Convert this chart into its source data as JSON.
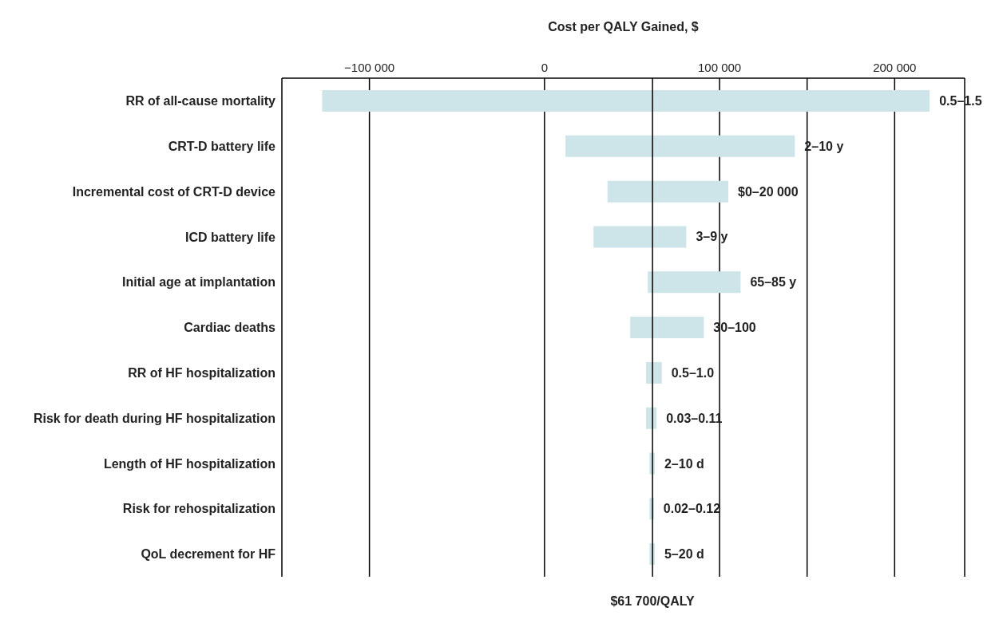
{
  "chart_data": {
    "type": "bar",
    "orientation": "horizontal",
    "xlabel": "Cost per QALY Gained, $",
    "categories": [
      "RR of all-cause mortality",
      "CRT-D battery life",
      "Incremental cost of CRT-D device",
      "ICD battery life",
      "Initial age at implantation",
      "Cardiac deaths",
      "RR of HF hospitalization",
      "Risk for death during HF hospitalization",
      "Length of HF hospitalization",
      "Risk for rehospitalization",
      "QoL decrement for HF"
    ],
    "base": [
      -127000,
      12000,
      36000,
      28000,
      59000,
      49000,
      58000,
      58000,
      60000,
      60000,
      60000
    ],
    "values": [
      347000,
      131000,
      69000,
      53000,
      53000,
      42000,
      9000,
      6000,
      3000,
      2500,
      3000
    ],
    "value_labels": [
      "0.5–1.5",
      "2–10 y",
      "$0–20 000",
      "3–9 y",
      "65–85 y",
      "30–100",
      "0.5–1.0",
      "0.03–0.11",
      "2–10 d",
      "0.02–0.12",
      "5–20 d"
    ],
    "color": "#cde4e8",
    "xlim": [
      -150000,
      240000
    ],
    "xticks": [
      {
        "value": -150000,
        "label": null
      },
      {
        "value": -100000,
        "label": "−100 000"
      },
      {
        "value": 0,
        "label": "0"
      },
      {
        "value": 100000,
        "label": "100 000"
      },
      {
        "value": 150000,
        "label": null
      },
      {
        "value": 200000,
        "label": "200 000"
      },
      {
        "value": 240000,
        "label": null
      }
    ],
    "grid": "x",
    "ref_lines": [
      {
        "axis": "x",
        "value": 61700,
        "label": "$61 700/QALY",
        "color": "#000000"
      }
    ]
  }
}
